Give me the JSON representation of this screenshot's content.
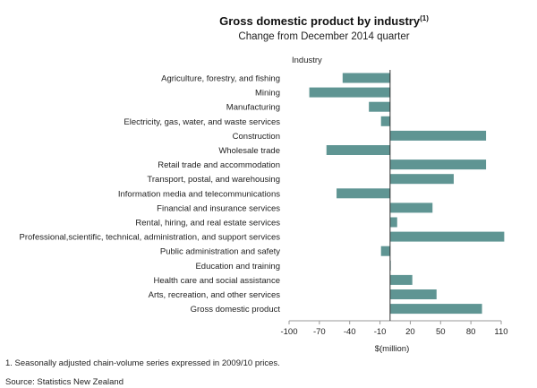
{
  "chart_data": {
    "type": "bar",
    "orientation": "horizontal",
    "title": "Gross domestic product by industry",
    "title_superscript": "(1)",
    "subtitle": "Change from December 2014 quarter",
    "category_header": "Industry",
    "xlabel": "$(million)",
    "xlim": [
      -100,
      110
    ],
    "xticks": [
      -100,
      -70,
      -40,
      -10,
      20,
      50,
      80,
      110
    ],
    "xtick_labels": [
      "-100",
      "-70",
      "-40",
      "-10",
      "20",
      "50",
      "80",
      "110"
    ],
    "grid": false,
    "bar_color": "#5f9593",
    "categories": [
      "Agriculture, forestry, and fishing",
      "Mining",
      "Manufacturing",
      "Electricity, gas, water, and waste services",
      "Construction",
      "Wholesale trade",
      "Retail trade and accommodation",
      "Transport, postal, and warehousing",
      "Information media and telecommunications",
      "Financial and insurance services",
      "Rental, hiring, and real estate services",
      "Professional,scientific, technical, administration, and support services",
      "Public administration and safety",
      "Education and training",
      "Health care and social assistance",
      "Arts, recreation, and other services",
      "Gross domestic product"
    ],
    "values": [
      -47,
      -80,
      -21,
      -9,
      95,
      -63,
      95,
      63,
      -53,
      42,
      7,
      113,
      -9,
      0.5,
      22,
      46,
      91
    ]
  },
  "footnote": "1. Seasonally adjusted chain-volume series expressed in 2009/10 prices.",
  "source": "Source: Statistics New Zealand"
}
